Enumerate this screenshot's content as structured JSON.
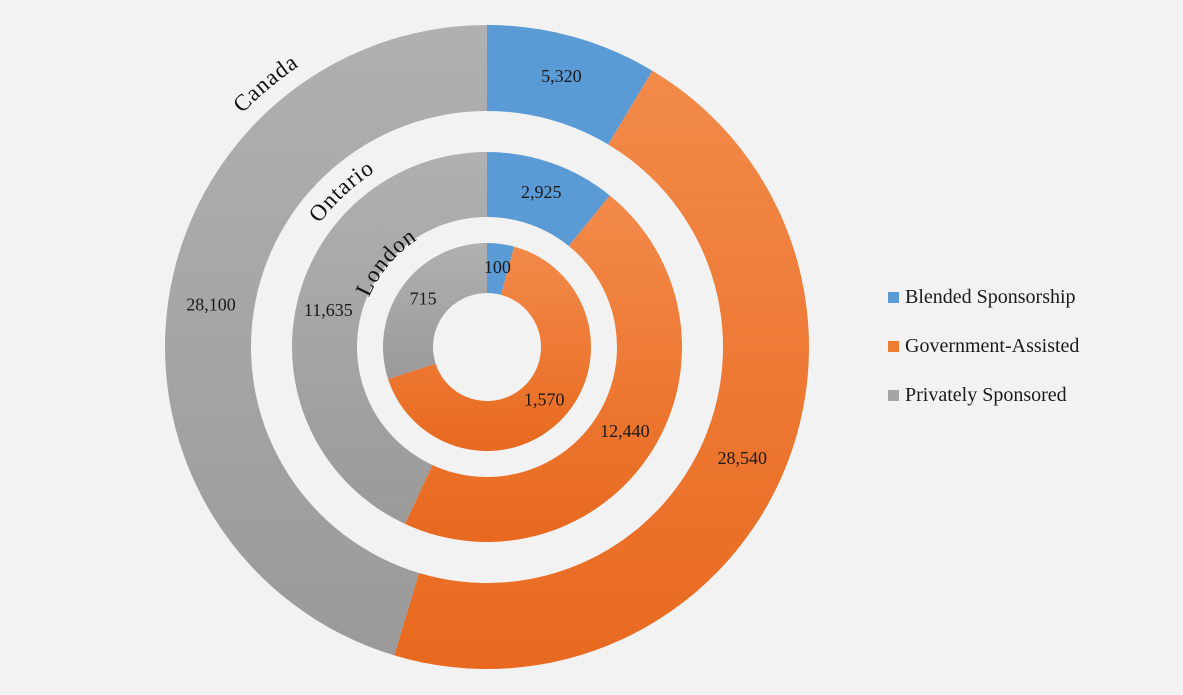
{
  "chart_data": {
    "type": "pie",
    "subtype": "multi-level doughnut",
    "title": "",
    "categories": [
      "Blended Sponsorship",
      "Government-Assisted",
      "Privately Sponsored"
    ],
    "colors": {
      "Blended Sponsorship": "#5b9bd5",
      "Government-Assisted": "#ed7d31",
      "Privately Sponsored": "#a5a5a5"
    },
    "rings": [
      {
        "name": "London",
        "values": [
          100,
          1570,
          715
        ],
        "labels": [
          "100",
          "1,570",
          "715"
        ]
      },
      {
        "name": "Ontario",
        "values": [
          2925,
          12440,
          11635
        ],
        "labels": [
          "2,925",
          "12,440",
          "11,635"
        ]
      },
      {
        "name": "Canada",
        "values": [
          5320,
          28540,
          28100
        ],
        "labels": [
          "5,320",
          "28,540",
          "28,100"
        ]
      }
    ],
    "legend": {
      "position": "right",
      "entries": [
        "Blended Sponsorship",
        "Government-Assisted",
        "Privately Sponsored"
      ]
    }
  }
}
